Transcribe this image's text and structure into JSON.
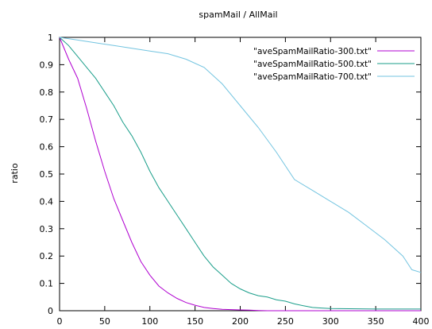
{
  "chart_data": {
    "type": "line",
    "title": "spamMail / AllMail",
    "xlabel": "",
    "ylabel": "ratio",
    "xlim": [
      0,
      400
    ],
    "ylim": [
      0,
      1
    ],
    "x_ticks": [
      0,
      50,
      100,
      150,
      200,
      250,
      300,
      350,
      400
    ],
    "y_ticks": [
      0,
      0.1,
      0.2,
      0.3,
      0.4,
      0.5,
      0.6,
      0.7,
      0.8,
      0.9,
      1
    ],
    "grid": false,
    "legend_position": "top-right",
    "series": [
      {
        "name": "\"aveSpamMailRatio-300.txt\"",
        "color": "#b000d0",
        "x": [
          0,
          10,
          20,
          30,
          40,
          50,
          60,
          70,
          80,
          90,
          100,
          110,
          120,
          130,
          140,
          150,
          160,
          170,
          180,
          190,
          200,
          210,
          220,
          230,
          240,
          250,
          300,
          350,
          400
        ],
        "y": [
          1.0,
          0.92,
          0.85,
          0.74,
          0.62,
          0.51,
          0.41,
          0.33,
          0.25,
          0.18,
          0.13,
          0.09,
          0.065,
          0.045,
          0.03,
          0.02,
          0.012,
          0.008,
          0.005,
          0.004,
          0.003,
          0.002,
          0.001,
          0.0,
          0.0,
          0.0,
          0.0,
          0.0,
          0.0
        ]
      },
      {
        "name": "\"aveSpamMailRatio-500.txt\"",
        "color": "#1a9e8a",
        "x": [
          0,
          10,
          20,
          30,
          40,
          50,
          60,
          70,
          80,
          90,
          100,
          110,
          120,
          130,
          140,
          150,
          160,
          170,
          180,
          190,
          200,
          210,
          220,
          230,
          240,
          250,
          260,
          270,
          280,
          290,
          300,
          350,
          400
        ],
        "y": [
          1.0,
          0.97,
          0.93,
          0.89,
          0.85,
          0.8,
          0.75,
          0.69,
          0.64,
          0.58,
          0.51,
          0.45,
          0.4,
          0.35,
          0.3,
          0.25,
          0.2,
          0.16,
          0.13,
          0.1,
          0.08,
          0.065,
          0.055,
          0.05,
          0.04,
          0.035,
          0.025,
          0.018,
          0.012,
          0.01,
          0.008,
          0.006,
          0.006
        ]
      },
      {
        "name": "\"aveSpamMailRatio-700.txt\"",
        "color": "#73c4e0",
        "x": [
          0,
          20,
          40,
          60,
          80,
          100,
          120,
          140,
          160,
          180,
          200,
          220,
          240,
          260,
          280,
          300,
          320,
          340,
          360,
          380,
          390,
          400
        ],
        "y": [
          1.0,
          0.99,
          0.98,
          0.97,
          0.96,
          0.95,
          0.94,
          0.92,
          0.89,
          0.83,
          0.75,
          0.67,
          0.58,
          0.48,
          0.44,
          0.4,
          0.36,
          0.31,
          0.26,
          0.2,
          0.15,
          0.14
        ]
      }
    ]
  }
}
